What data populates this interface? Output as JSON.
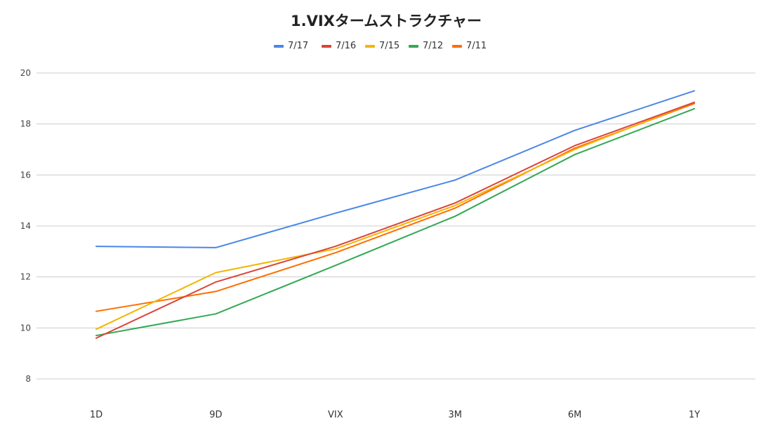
{
  "chart_data": {
    "type": "line",
    "title": "1.VIXタームストラクチャー",
    "xlabel": "",
    "ylabel": "",
    "categories": [
      "1D",
      "9D",
      "VIX",
      "3M",
      "6M",
      "1Y"
    ],
    "ylim": [
      7,
      21
    ],
    "yticks": [
      8,
      10,
      12,
      14,
      16,
      18,
      20
    ],
    "grid": true,
    "legend_position": "top-center",
    "series": [
      {
        "name": "7/17",
        "color": "#4a86e8",
        "values": [
          13.2,
          13.15,
          14.5,
          15.8,
          17.75,
          19.3
        ]
      },
      {
        "name": "7/16",
        "color": "#db4437",
        "values": [
          9.6,
          11.8,
          13.2,
          14.9,
          17.15,
          18.85
        ]
      },
      {
        "name": "7/15",
        "color": "#f4b400",
        "values": [
          9.95,
          12.17,
          13.1,
          14.8,
          17.0,
          18.85
        ]
      },
      {
        "name": "7/12",
        "color": "#34a853",
        "values": [
          9.7,
          10.55,
          12.45,
          14.38,
          16.8,
          18.6
        ]
      },
      {
        "name": "7/11",
        "color": "#ff6d00",
        "values": [
          10.65,
          11.43,
          12.95,
          14.7,
          17.05,
          18.8
        ]
      }
    ]
  }
}
